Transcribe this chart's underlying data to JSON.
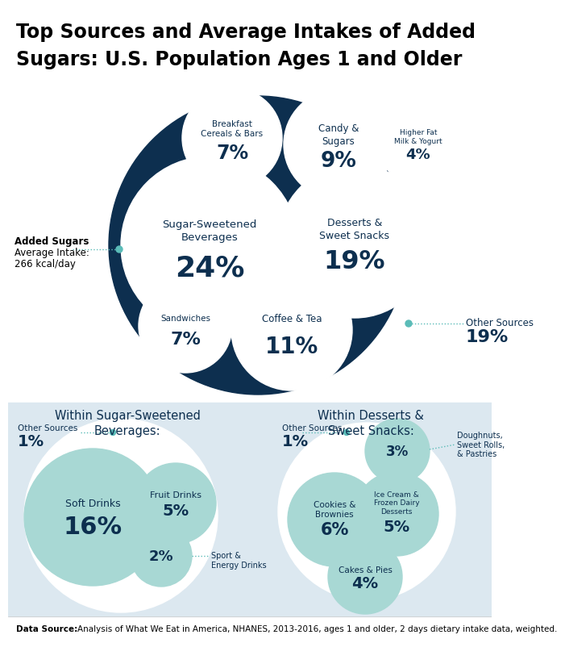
{
  "title_line1": "Top Sources and Average Intakes of Added",
  "title_line2": "Sugars: U.S. Population Ages 1 and Older",
  "dark_blue": "#0d2f4f",
  "white": "#ffffff",
  "light_teal": "#a8d8d4",
  "teal": "#5bbcb8",
  "text_dark": "#0d2f4f",
  "panel_bg": "#dce8f0",
  "data_source_bold": "Data Source:",
  "data_source_rest": " Analysis of What We Eat in America, NHANES, 2013-2016, ages 1 and older, 2 days dietary intake data, weighted.",
  "added_sugars_text": "Added Sugars\nAverage Intake:\n266 kcal/day"
}
